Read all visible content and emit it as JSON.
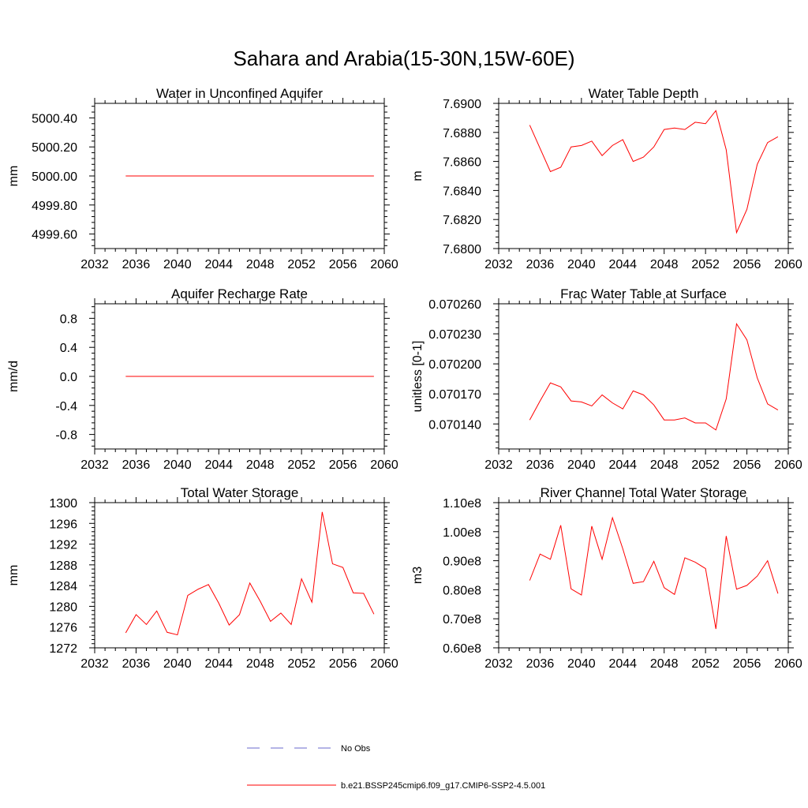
{
  "figure_title": "Sahara and Arabia(15-30N,15W-60E)",
  "legend": {
    "obs_label": "No Obs",
    "model_label": "b.e21.BSSP245cmip6.f09_g17.CMIP6-SSP2-4.5.001",
    "obs_color": "#6a6acd",
    "model_color": "#ff0000"
  },
  "chart_data": [
    {
      "type": "line",
      "title": "Water in Unconfined Aquifer",
      "ylabel": "mm",
      "xlim": [
        2032,
        2060
      ],
      "ylim": [
        4999.5,
        5000.5
      ],
      "xticks": [
        2032,
        2036,
        2040,
        2044,
        2048,
        2052,
        2056,
        2060
      ],
      "xtick_labels": [
        "2032",
        "2036",
        "2040",
        "2044",
        "2048",
        "2052",
        "2056",
        "2060"
      ],
      "yticks": [
        4999.6,
        4999.8,
        5000.0,
        5000.2,
        5000.4
      ],
      "ytick_labels": [
        "4999.60",
        "4999.80",
        "5000.00",
        "5000.20",
        "5000.40"
      ],
      "x": [
        2035,
        2036,
        2037,
        2038,
        2039,
        2040,
        2041,
        2042,
        2043,
        2044,
        2045,
        2046,
        2047,
        2048,
        2049,
        2050,
        2051,
        2052,
        2053,
        2054,
        2055,
        2056,
        2057,
        2058,
        2059
      ],
      "series": [
        {
          "values": [
            5000,
            5000,
            5000,
            5000,
            5000,
            5000,
            5000,
            5000,
            5000,
            5000,
            5000,
            5000,
            5000,
            5000,
            5000,
            5000,
            5000,
            5000,
            5000,
            5000,
            5000,
            5000,
            5000,
            5000,
            5000
          ]
        }
      ]
    },
    {
      "type": "line",
      "title": "Water Table Depth",
      "ylabel": "m",
      "xlim": [
        2032,
        2060
      ],
      "ylim": [
        7.68,
        7.69
      ],
      "xticks": [
        2032,
        2036,
        2040,
        2044,
        2048,
        2052,
        2056,
        2060
      ],
      "xtick_labels": [
        "2032",
        "2036",
        "2040",
        "2044",
        "2048",
        "2052",
        "2056",
        "2060"
      ],
      "yticks": [
        7.68,
        7.682,
        7.684,
        7.686,
        7.688,
        7.69
      ],
      "ytick_labels": [
        "7.6800",
        "7.6820",
        "7.6840",
        "7.6860",
        "7.6880",
        "7.6900"
      ],
      "x": [
        2035,
        2036,
        2037,
        2038,
        2039,
        2040,
        2041,
        2042,
        2043,
        2044,
        2045,
        2046,
        2047,
        2048,
        2049,
        2050,
        2051,
        2052,
        2053,
        2054,
        2055,
        2056,
        2057,
        2058,
        2059
      ],
      "series": [
        {
          "values": [
            7.6885,
            7.6869,
            7.6853,
            7.6856,
            7.687,
            7.6871,
            7.6874,
            7.6864,
            7.6871,
            7.6875,
            7.686,
            7.6863,
            7.687,
            7.6882,
            7.6883,
            7.6882,
            7.6887,
            7.6886,
            7.6895,
            7.6868,
            7.6811,
            7.6827,
            7.6858,
            7.6873,
            7.6877
          ]
        }
      ]
    },
    {
      "type": "line",
      "title": "Aquifer Recharge Rate",
      "ylabel": "mm/d",
      "xlim": [
        2032,
        2060
      ],
      "ylim": [
        -1.0,
        1.0
      ],
      "xticks": [
        2032,
        2036,
        2040,
        2044,
        2048,
        2052,
        2056,
        2060
      ],
      "xtick_labels": [
        "2032",
        "2036",
        "2040",
        "2044",
        "2048",
        "2052",
        "2056",
        "2060"
      ],
      "yticks": [
        -0.8,
        -0.4,
        0.0,
        0.4,
        0.8
      ],
      "ytick_labels": [
        "-0.8",
        "-0.4",
        "0.0",
        "0.4",
        "0.8"
      ],
      "x": [
        2035,
        2036,
        2037,
        2038,
        2039,
        2040,
        2041,
        2042,
        2043,
        2044,
        2045,
        2046,
        2047,
        2048,
        2049,
        2050,
        2051,
        2052,
        2053,
        2054,
        2055,
        2056,
        2057,
        2058,
        2059
      ],
      "series": [
        {
          "values": [
            0,
            0,
            0,
            0,
            0,
            0,
            0,
            0,
            0,
            0,
            0,
            0,
            0,
            0,
            0,
            0,
            0,
            0,
            0,
            0,
            0,
            0,
            0,
            0,
            0
          ]
        }
      ]
    },
    {
      "type": "line",
      "title": "Frac Water Table at Surface",
      "ylabel": "unitless [0-1]",
      "xlim": [
        2032,
        2060
      ],
      "ylim": [
        0.070115,
        0.07026
      ],
      "xticks": [
        2032,
        2036,
        2040,
        2044,
        2048,
        2052,
        2056,
        2060
      ],
      "xtick_labels": [
        "2032",
        "2036",
        "2040",
        "2044",
        "2048",
        "2052",
        "2056",
        "2060"
      ],
      "yticks": [
        0.07014,
        0.07017,
        0.0702,
        0.07023,
        0.07026
      ],
      "ytick_labels": [
        "0.070140",
        "0.070170",
        "0.070200",
        "0.070230",
        "0.070260"
      ],
      "x": [
        2035,
        2036,
        2037,
        2038,
        2039,
        2040,
        2041,
        2042,
        2043,
        2044,
        2045,
        2046,
        2047,
        2048,
        2049,
        2050,
        2051,
        2052,
        2053,
        2054,
        2055,
        2056,
        2057,
        2058,
        2059
      ],
      "series": [
        {
          "values": [
            0.070144,
            0.070163,
            0.070181,
            0.070177,
            0.070163,
            0.070162,
            0.070158,
            0.070169,
            0.070161,
            0.070155,
            0.070173,
            0.070169,
            0.070159,
            0.070144,
            0.070144,
            0.070146,
            0.070141,
            0.070141,
            0.070134,
            0.070165,
            0.07024,
            0.070224,
            0.070186,
            0.07016,
            0.070154
          ]
        }
      ]
    },
    {
      "type": "line",
      "title": "Total Water Storage",
      "ylabel": "mm",
      "xlim": [
        2032,
        2060
      ],
      "ylim": [
        1272,
        1300
      ],
      "xticks": [
        2032,
        2036,
        2040,
        2044,
        2048,
        2052,
        2056,
        2060
      ],
      "xtick_labels": [
        "2032",
        "2036",
        "2040",
        "2044",
        "2048",
        "2052",
        "2056",
        "2060"
      ],
      "yticks": [
        1272,
        1276,
        1280,
        1284,
        1288,
        1292,
        1296,
        1300
      ],
      "ytick_labels": [
        "1272",
        "1276",
        "1280",
        "1284",
        "1288",
        "1292",
        "1296",
        "1300"
      ],
      "x": [
        2035,
        2036,
        2037,
        2038,
        2039,
        2040,
        2041,
        2042,
        2043,
        2044,
        2045,
        2046,
        2047,
        2048,
        2049,
        2050,
        2051,
        2052,
        2053,
        2054,
        2055,
        2056,
        2057,
        2058,
        2059
      ],
      "series": [
        {
          "values": [
            1274.9,
            1278.4,
            1276.5,
            1279.1,
            1275.0,
            1274.5,
            1282.1,
            1283.3,
            1284.2,
            1280.6,
            1276.4,
            1278.4,
            1284.5,
            1281.0,
            1277.1,
            1278.7,
            1276.5,
            1285.3,
            1280.8,
            1298.2,
            1288.2,
            1287.5,
            1282.6,
            1282.5,
            1278.5
          ]
        }
      ]
    },
    {
      "type": "line",
      "title": "River Channel Total Water Storage",
      "ylabel": "m3",
      "xlim": [
        2032,
        2060
      ],
      "ylim": [
        60000000.0,
        110000000.0
      ],
      "xticks": [
        2032,
        2036,
        2040,
        2044,
        2048,
        2052,
        2056,
        2060
      ],
      "xtick_labels": [
        "2032",
        "2036",
        "2040",
        "2044",
        "2048",
        "2052",
        "2056",
        "2060"
      ],
      "yticks": [
        60000000.0,
        70000000.0,
        80000000.0,
        90000000.0,
        100000000.0,
        110000000.0
      ],
      "ytick_labels": [
        "0.60e8",
        "0.70e8",
        "0.80e8",
        "0.90e8",
        "1.00e8",
        "1.10e8"
      ],
      "x": [
        2035,
        2036,
        2037,
        2038,
        2039,
        2040,
        2041,
        2042,
        2043,
        2044,
        2045,
        2046,
        2047,
        2048,
        2049,
        2050,
        2051,
        2052,
        2053,
        2054,
        2055,
        2056,
        2057,
        2058,
        2059
      ],
      "series": [
        {
          "values": [
            83200000.0,
            92300000.0,
            90500000.0,
            102200000.0,
            80300000.0,
            78200000.0,
            101900000.0,
            90500000.0,
            104800000.0,
            94100000.0,
            82200000.0,
            82800000.0,
            89800000.0,
            80700000.0,
            78400000.0,
            91000000.0,
            89500000.0,
            87300000.0,
            66500000.0,
            98500000.0,
            80200000.0,
            81500000.0,
            84700000.0,
            90000000.0,
            78700000.0
          ]
        }
      ]
    }
  ]
}
